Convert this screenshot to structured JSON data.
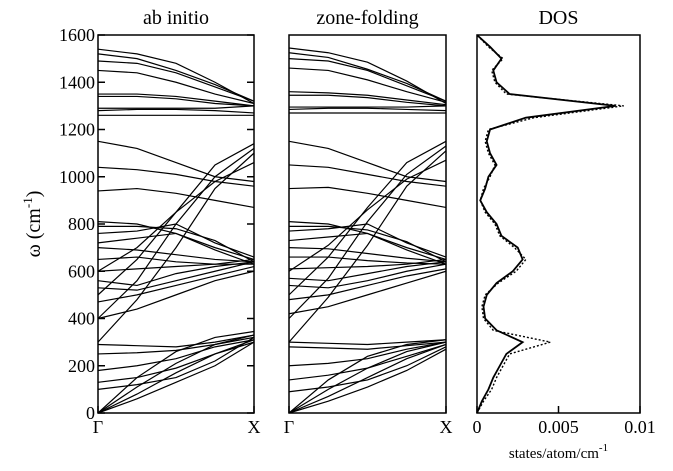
{
  "chart_data": [
    {
      "type": "line",
      "title": "ab initio",
      "y_label": [
        "ω  (cm",
        "-1",
        ")"
      ],
      "x": [
        0,
        0.25,
        0.5,
        0.75,
        1
      ],
      "xlim": [
        0,
        1
      ],
      "xticks": [
        {
          "value": 0,
          "label": "Γ"
        },
        {
          "value": 1,
          "label": "X"
        }
      ],
      "ylim": [
        0,
        1600
      ],
      "yticks": [
        0,
        200,
        400,
        600,
        800,
        1000,
        1200,
        1400,
        1600
      ],
      "series": [
        {
          "color": "#000",
          "values": [
            0,
            80,
            170,
            250,
            310
          ]
        },
        {
          "color": "#000",
          "values": [
            0,
            110,
            210,
            290,
            330
          ]
        },
        {
          "color": "#000",
          "values": [
            0,
            150,
            260,
            320,
            345
          ]
        },
        {
          "color": "#000",
          "values": [
            0,
            60,
            130,
            200,
            300
          ]
        },
        {
          "color": "#000",
          "values": [
            250,
            255,
            265,
            290,
            320
          ]
        },
        {
          "color": "#000",
          "values": [
            290,
            285,
            280,
            300,
            330
          ]
        },
        {
          "color": "#000",
          "values": [
            180,
            200,
            230,
            280,
            310
          ]
        },
        {
          "color": "#000",
          "values": [
            130,
            150,
            190,
            250,
            300
          ]
        },
        {
          "color": "#000",
          "values": [
            100,
            120,
            150,
            220,
            320
          ]
        },
        {
          "color": "#000",
          "values": [
            400,
            440,
            500,
            560,
            600
          ]
        },
        {
          "color": "#000",
          "values": [
            470,
            500,
            540,
            580,
            620
          ]
        },
        {
          "color": "#000",
          "values": [
            530,
            520,
            560,
            600,
            640
          ]
        },
        {
          "color": "#000",
          "values": [
            560,
            540,
            590,
            620,
            640
          ]
        },
        {
          "color": "#000",
          "values": [
            600,
            610,
            620,
            630,
            650
          ]
        },
        {
          "color": "#000",
          "values": [
            650,
            660,
            640,
            630,
            630
          ]
        },
        {
          "color": "#000",
          "values": [
            700,
            690,
            670,
            650,
            640
          ]
        },
        {
          "color": "#000",
          "values": [
            720,
            740,
            760,
            700,
            650
          ]
        },
        {
          "color": "#000",
          "values": [
            760,
            770,
            800,
            720,
            660
          ]
        },
        {
          "color": "#000",
          "values": [
            790,
            790,
            780,
            730,
            640
          ]
        },
        {
          "color": "#000",
          "values": [
            810,
            800,
            760,
            690,
            630
          ]
        },
        {
          "color": "#000",
          "values": [
            500,
            650,
            850,
            1050,
            1140
          ]
        },
        {
          "color": "#000",
          "values": [
            400,
            560,
            800,
            1000,
            1120
          ]
        },
        {
          "color": "#000",
          "values": [
            300,
            480,
            700,
            950,
            1100
          ]
        },
        {
          "color": "#000",
          "values": [
            600,
            700,
            850,
            980,
            1060
          ]
        },
        {
          "color": "#000",
          "values": [
            940,
            950,
            930,
            900,
            870
          ]
        },
        {
          "color": "#000",
          "values": [
            1040,
            1030,
            1010,
            980,
            960
          ]
        },
        {
          "color": "#000",
          "values": [
            1150,
            1120,
            1060,
            1000,
            980
          ]
        },
        {
          "color": "#000",
          "values": [
            1260,
            1260,
            1260,
            1260,
            1260
          ]
        },
        {
          "color": "#000",
          "values": [
            1280,
            1285,
            1285,
            1280,
            1270
          ]
        },
        {
          "color": "#000",
          "values": [
            1290,
            1290,
            1290,
            1290,
            1300
          ]
        },
        {
          "color": "#000",
          "values": [
            1340,
            1340,
            1330,
            1310,
            1300
          ]
        },
        {
          "color": "#000",
          "values": [
            1350,
            1350,
            1340,
            1320,
            1300
          ]
        },
        {
          "color": "#000",
          "values": [
            1450,
            1440,
            1400,
            1350,
            1310
          ]
        },
        {
          "color": "#000",
          "values": [
            1490,
            1480,
            1440,
            1380,
            1320
          ]
        },
        {
          "color": "#000",
          "values": [
            1520,
            1500,
            1450,
            1390,
            1320
          ]
        },
        {
          "color": "#000",
          "values": [
            1540,
            1520,
            1480,
            1400,
            1310
          ]
        }
      ]
    },
    {
      "type": "line",
      "title": "zone-folding",
      "x": [
        0,
        0.25,
        0.5,
        0.75,
        1
      ],
      "xlim": [
        0,
        1
      ],
      "xticks": [
        {
          "value": 0,
          "label": "Γ"
        },
        {
          "value": 1,
          "label": "X"
        }
      ],
      "ylim": [
        0,
        1600
      ],
      "series": [
        {
          "color": "#000",
          "values": [
            0,
            70,
            150,
            230,
            290
          ]
        },
        {
          "color": "#000",
          "values": [
            0,
            100,
            190,
            260,
            300
          ]
        },
        {
          "color": "#000",
          "values": [
            0,
            140,
            240,
            290,
            310
          ]
        },
        {
          "color": "#000",
          "values": [
            0,
            50,
            110,
            180,
            270
          ]
        },
        {
          "color": "#000",
          "values": [
            280,
            275,
            270,
            285,
            300
          ]
        },
        {
          "color": "#000",
          "values": [
            300,
            295,
            290,
            300,
            310
          ]
        },
        {
          "color": "#000",
          "values": [
            200,
            210,
            230,
            270,
            300
          ]
        },
        {
          "color": "#000",
          "values": [
            140,
            160,
            190,
            240,
            290
          ]
        },
        {
          "color": "#000",
          "values": [
            90,
            110,
            140,
            200,
            280
          ]
        },
        {
          "color": "#000",
          "values": [
            420,
            450,
            500,
            550,
            600
          ]
        },
        {
          "color": "#000",
          "values": [
            480,
            500,
            540,
            580,
            610
          ]
        },
        {
          "color": "#000",
          "values": [
            540,
            530,
            560,
            600,
            630
          ]
        },
        {
          "color": "#000",
          "values": [
            570,
            560,
            590,
            620,
            640
          ]
        },
        {
          "color": "#000",
          "values": [
            610,
            615,
            620,
            630,
            650
          ]
        },
        {
          "color": "#000",
          "values": [
            660,
            660,
            645,
            635,
            630
          ]
        },
        {
          "color": "#000",
          "values": [
            700,
            695,
            675,
            655,
            640
          ]
        },
        {
          "color": "#000",
          "values": [
            730,
            745,
            760,
            700,
            650
          ]
        },
        {
          "color": "#000",
          "values": [
            770,
            780,
            800,
            720,
            660
          ]
        },
        {
          "color": "#000",
          "values": [
            790,
            790,
            775,
            725,
            640
          ]
        },
        {
          "color": "#000",
          "values": [
            810,
            800,
            760,
            690,
            630
          ]
        },
        {
          "color": "#000",
          "values": [
            500,
            660,
            870,
            1060,
            1150
          ]
        },
        {
          "color": "#000",
          "values": [
            400,
            570,
            810,
            1010,
            1130
          ]
        },
        {
          "color": "#000",
          "values": [
            300,
            490,
            710,
            960,
            1110
          ]
        },
        {
          "color": "#000",
          "values": [
            600,
            710,
            860,
            990,
            1070
          ]
        },
        {
          "color": "#000",
          "values": [
            950,
            955,
            930,
            900,
            870
          ]
        },
        {
          "color": "#000",
          "values": [
            1050,
            1040,
            1010,
            980,
            960
          ]
        },
        {
          "color": "#000",
          "values": [
            1150,
            1120,
            1060,
            1000,
            980
          ]
        },
        {
          "color": "#000",
          "values": [
            1270,
            1270,
            1270,
            1270,
            1270
          ]
        },
        {
          "color": "#000",
          "values": [
            1285,
            1290,
            1290,
            1285,
            1280
          ]
        },
        {
          "color": "#000",
          "values": [
            1295,
            1295,
            1295,
            1295,
            1300
          ]
        },
        {
          "color": "#000",
          "values": [
            1345,
            1345,
            1335,
            1315,
            1300
          ]
        },
        {
          "color": "#000",
          "values": [
            1360,
            1355,
            1345,
            1325,
            1305
          ]
        },
        {
          "color": "#000",
          "values": [
            1460,
            1450,
            1410,
            1360,
            1315
          ]
        },
        {
          "color": "#000",
          "values": [
            1500,
            1490,
            1450,
            1385,
            1320
          ]
        },
        {
          "color": "#000",
          "values": [
            1525,
            1505,
            1455,
            1395,
            1320
          ]
        },
        {
          "color": "#000",
          "values": [
            1545,
            1525,
            1485,
            1405,
            1310
          ]
        }
      ]
    },
    {
      "type": "dos",
      "title": "DOS",
      "x_label": [
        "states/atom/cm",
        "-1"
      ],
      "y": [
        0,
        50,
        100,
        150,
        200,
        250,
        300,
        350,
        400,
        450,
        500,
        550,
        600,
        650,
        700,
        750,
        800,
        850,
        900,
        950,
        1000,
        1050,
        1100,
        1150,
        1200,
        1250,
        1300,
        1350,
        1400,
        1450,
        1500,
        1550,
        1600
      ],
      "ylim": [
        0,
        1600
      ],
      "xlim": [
        0,
        0.01
      ],
      "xticks": [
        0,
        0.005,
        0.01
      ],
      "series": [
        {
          "color": "#000",
          "style": "solid",
          "values": [
            0,
            0.0003,
            0.0007,
            0.001,
            0.0014,
            0.0018,
            0.0028,
            0.0012,
            0.0005,
            0.0004,
            0.0006,
            0.0012,
            0.0022,
            0.0028,
            0.0025,
            0.0015,
            0.0012,
            0.0006,
            0.0002,
            0.0005,
            0.0007,
            0.0012,
            0.0008,
            0.0006,
            0.0008,
            0.003,
            0.0085,
            0.002,
            0.0012,
            0.001,
            0.0015,
            0.0008,
            0
          ]
        },
        {
          "color": "#000",
          "style": "dotted",
          "values": [
            0,
            0.0004,
            0.0009,
            0.0012,
            0.0016,
            0.002,
            0.0045,
            0.001,
            0.0004,
            0.0003,
            0.0005,
            0.0013,
            0.0024,
            0.003,
            0.0023,
            0.0014,
            0.0011,
            0.0005,
            0.0002,
            0.0004,
            0.0008,
            0.0011,
            0.0007,
            0.0005,
            0.0007,
            0.0035,
            0.009,
            0.0018,
            0.0011,
            0.0009,
            0.0016,
            0.0007,
            0
          ]
        }
      ]
    }
  ]
}
